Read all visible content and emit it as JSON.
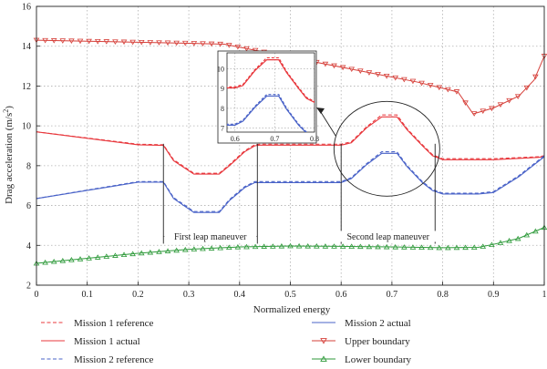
{
  "chart_data": {
    "type": "line",
    "title": "",
    "xlabel": "Normalized energy",
    "ylabel": "Drag acceleration (m/s",
    "ylabel_sup": "2",
    "ylabel_close": ")",
    "xlim": [
      0,
      1
    ],
    "ylim": [
      2,
      16
    ],
    "xticks": [
      0,
      0.1,
      0.2,
      0.3,
      0.4,
      0.5,
      0.6,
      0.7,
      0.8,
      0.9,
      1
    ],
    "xtick_labels": [
      "0",
      "0.1",
      "0.2",
      "0.3",
      "0.4",
      "0.5",
      "0.6",
      "0.7",
      "0.8",
      "0.9",
      "1"
    ],
    "yticks": [
      2,
      4,
      6,
      8,
      10,
      12,
      14,
      16
    ],
    "ytick_labels": [
      "2",
      "4",
      "6",
      "8",
      "10",
      "12",
      "14",
      "16"
    ],
    "grid": "dotted",
    "legend_position": "bottom",
    "series": [
      {
        "name": "Mission 1 reference",
        "color": "#e8383d",
        "style": "dashed",
        "x": [
          0,
          0.2,
          0.25,
          0.27,
          0.31,
          0.36,
          0.38,
          0.41,
          0.43,
          0.44,
          0.5,
          0.6,
          0.62,
          0.65,
          0.68,
          0.71,
          0.73,
          0.76,
          0.78,
          0.8,
          0.9,
          0.99,
          1.0
        ],
        "y": [
          9.7,
          9.08,
          9.05,
          8.3,
          7.62,
          7.62,
          8.05,
          8.75,
          9.05,
          9.08,
          9.08,
          9.08,
          9.2,
          9.95,
          10.55,
          10.55,
          9.85,
          9.05,
          8.55,
          8.35,
          8.35,
          8.45,
          8.5
        ]
      },
      {
        "name": "Mission 1 actual",
        "color": "#e8383d",
        "style": "solid",
        "x": [
          0,
          0.2,
          0.25,
          0.27,
          0.31,
          0.36,
          0.38,
          0.41,
          0.43,
          0.44,
          0.5,
          0.6,
          0.62,
          0.65,
          0.68,
          0.71,
          0.73,
          0.76,
          0.78,
          0.8,
          0.9,
          0.99,
          1.0
        ],
        "y": [
          9.7,
          9.05,
          9.02,
          8.25,
          7.58,
          7.58,
          8.0,
          8.7,
          9.0,
          9.03,
          9.03,
          9.03,
          9.15,
          9.9,
          10.45,
          10.45,
          9.8,
          9.0,
          8.5,
          8.3,
          8.3,
          8.42,
          8.48
        ]
      },
      {
        "name": "Mission 2 reference",
        "color": "#4a63c8",
        "style": "dashed",
        "x": [
          0,
          0.2,
          0.25,
          0.27,
          0.31,
          0.36,
          0.38,
          0.41,
          0.43,
          0.44,
          0.5,
          0.6,
          0.62,
          0.65,
          0.68,
          0.71,
          0.73,
          0.76,
          0.78,
          0.8,
          0.87,
          0.9,
          0.95,
          1.0
        ],
        "y": [
          6.35,
          7.2,
          7.2,
          6.4,
          5.7,
          5.7,
          6.3,
          6.95,
          7.2,
          7.2,
          7.2,
          7.2,
          7.4,
          8.1,
          8.7,
          8.7,
          8.0,
          7.2,
          6.8,
          6.62,
          6.62,
          6.7,
          7.5,
          8.5
        ]
      },
      {
        "name": "Mission 2 actual",
        "color": "#4a63c8",
        "style": "solid",
        "x": [
          0,
          0.2,
          0.25,
          0.27,
          0.31,
          0.36,
          0.38,
          0.41,
          0.43,
          0.44,
          0.5,
          0.6,
          0.62,
          0.65,
          0.68,
          0.71,
          0.73,
          0.76,
          0.78,
          0.8,
          0.87,
          0.9,
          0.95,
          1.0
        ],
        "y": [
          6.35,
          7.17,
          7.17,
          6.35,
          5.65,
          5.65,
          6.25,
          6.9,
          7.15,
          7.15,
          7.15,
          7.15,
          7.35,
          8.05,
          8.62,
          8.62,
          7.95,
          7.15,
          6.75,
          6.58,
          6.58,
          6.65,
          7.45,
          8.45
        ]
      },
      {
        "name": "Upper boundary",
        "color": "#d6403a",
        "style": "solid",
        "marker": "triangle-down",
        "x": [
          0,
          0.1,
          0.2,
          0.3,
          0.37,
          0.45,
          0.55,
          0.65,
          0.75,
          0.83,
          0.86,
          0.9,
          0.95,
          0.98,
          1.0
        ],
        "y": [
          14.3,
          14.25,
          14.2,
          14.15,
          14.1,
          13.7,
          13.2,
          12.7,
          12.2,
          11.7,
          10.6,
          10.9,
          11.5,
          12.3,
          13.5
        ]
      },
      {
        "name": "Lower boundary",
        "color": "#2e9a3a",
        "style": "solid",
        "marker": "triangle-up",
        "x": [
          0,
          0.1,
          0.2,
          0.3,
          0.4,
          0.5,
          0.6,
          0.7,
          0.8,
          0.87,
          0.9,
          0.95,
          1.0
        ],
        "y": [
          3.1,
          3.35,
          3.6,
          3.8,
          3.92,
          3.97,
          3.95,
          3.92,
          3.88,
          3.9,
          4.05,
          4.35,
          4.9
        ]
      }
    ],
    "annotations": [
      {
        "text": "First leap maneuver",
        "x_start": 0.25,
        "x_end": 0.435,
        "y": 4.45
      },
      {
        "text": "Second leap maneuver",
        "x_start": 0.6,
        "x_end": 0.785,
        "y": 4.45
      }
    ],
    "inset": {
      "xlim": [
        0.58,
        0.8
      ],
      "ylim": [
        6.8,
        10.8
      ],
      "xticks": [
        0.6,
        0.7,
        0.8
      ],
      "xtick_labels": [
        "0.6",
        "0.7",
        "0.8"
      ],
      "yticks": [
        7,
        8,
        9,
        10
      ],
      "ytick_labels": [
        "7",
        "8",
        "9",
        "10"
      ]
    }
  }
}
